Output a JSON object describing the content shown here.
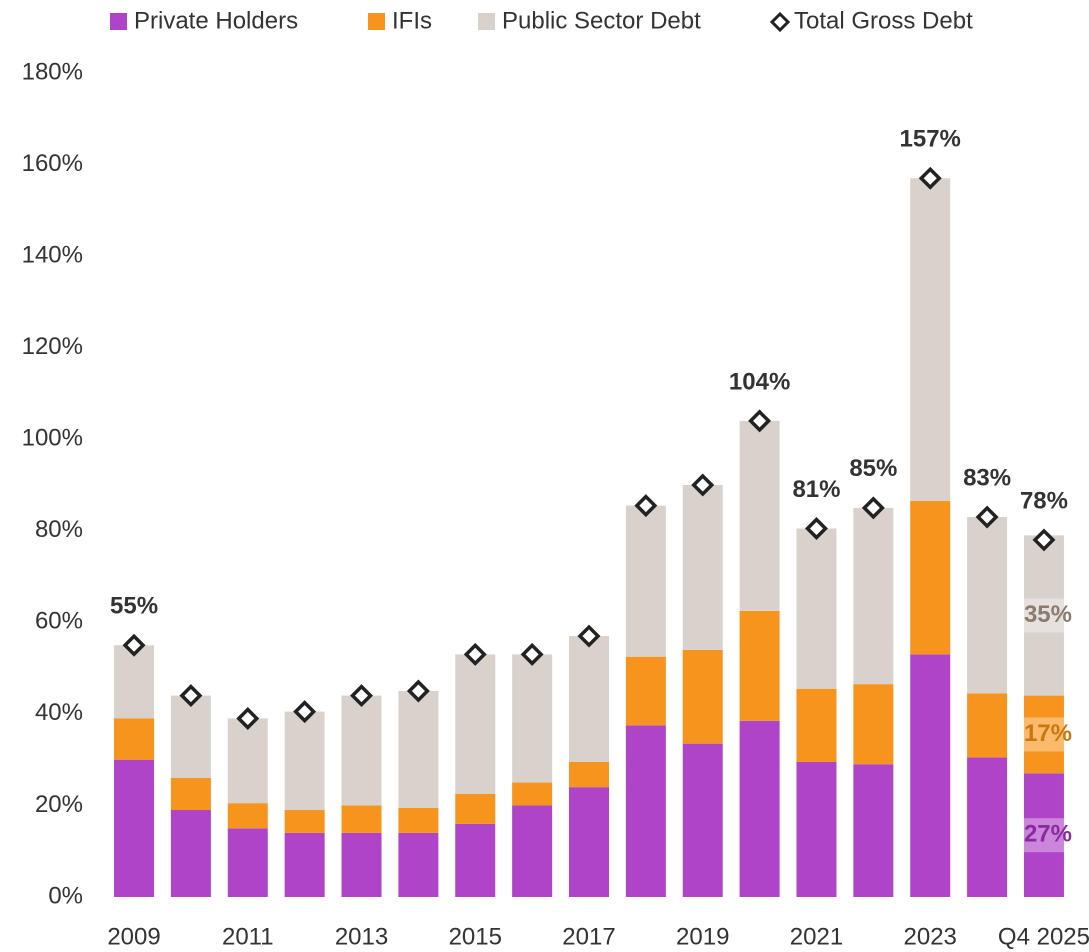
{
  "chart_data": {
    "type": "bar",
    "stacked": true,
    "categories": [
      "2009",
      null,
      "2011",
      null,
      "2013",
      null,
      "2015",
      null,
      "2017",
      null,
      "2019",
      null,
      "2021",
      null,
      "2023",
      null,
      "Q4 2025"
    ],
    "series": [
      {
        "name": "Private Holders",
        "color": "#b044c8",
        "values": [
          30,
          19,
          15,
          14,
          14,
          14,
          16,
          20,
          24,
          37.5,
          33.5,
          38.5,
          29.5,
          29,
          53,
          30.5,
          27
        ],
        "value_labels": [
          null,
          null,
          null,
          null,
          null,
          null,
          null,
          null,
          null,
          null,
          null,
          null,
          null,
          null,
          null,
          null,
          "27%"
        ]
      },
      {
        "name": "IFIs",
        "color": "#f7941d",
        "values": [
          9,
          7,
          5.5,
          5,
          6,
          5.5,
          6.5,
          5,
          5.5,
          15,
          20.5,
          24,
          16,
          17.5,
          33.5,
          14,
          17
        ],
        "value_labels": [
          null,
          null,
          null,
          null,
          null,
          null,
          null,
          null,
          null,
          null,
          null,
          null,
          null,
          null,
          null,
          null,
          "17%"
        ]
      },
      {
        "name": "Public Sector Debt",
        "color": "#d9d2cc",
        "values": [
          16,
          18,
          18.5,
          21.5,
          24,
          25.5,
          30.5,
          28,
          27.5,
          33,
          36,
          41.5,
          35,
          38.5,
          70.5,
          38.5,
          35
        ],
        "value_labels": [
          null,
          null,
          null,
          null,
          null,
          null,
          null,
          null,
          null,
          null,
          null,
          null,
          null,
          null,
          null,
          null,
          "35%"
        ]
      },
      {
        "name": "Total Gross Debt",
        "type": "scatter",
        "color": "#222222",
        "values": [
          55,
          44,
          39,
          40.5,
          44,
          45,
          53,
          53,
          57,
          85.5,
          90,
          104,
          80.5,
          85,
          157,
          83,
          78
        ],
        "value_labels": [
          "55%",
          null,
          null,
          null,
          null,
          null,
          null,
          null,
          null,
          null,
          null,
          "104%",
          "81%",
          "85%",
          "157%",
          "83%",
          "78%"
        ]
      }
    ],
    "ylim": [
      0,
      180
    ],
    "yticks": [
      {
        "value": 0,
        "label": "0%"
      },
      {
        "value": 20,
        "label": "20%"
      },
      {
        "value": 40,
        "label": "40%"
      },
      {
        "value": 60,
        "label": "60%"
      },
      {
        "value": 80,
        "label": "80%"
      },
      {
        "value": 100,
        "label": "100%"
      },
      {
        "value": 120,
        "label": "120%"
      },
      {
        "value": 140,
        "label": "140%"
      },
      {
        "value": 160,
        "label": "160%"
      },
      {
        "value": 180,
        "label": "180%"
      }
    ],
    "grid": false,
    "legend": "top"
  }
}
